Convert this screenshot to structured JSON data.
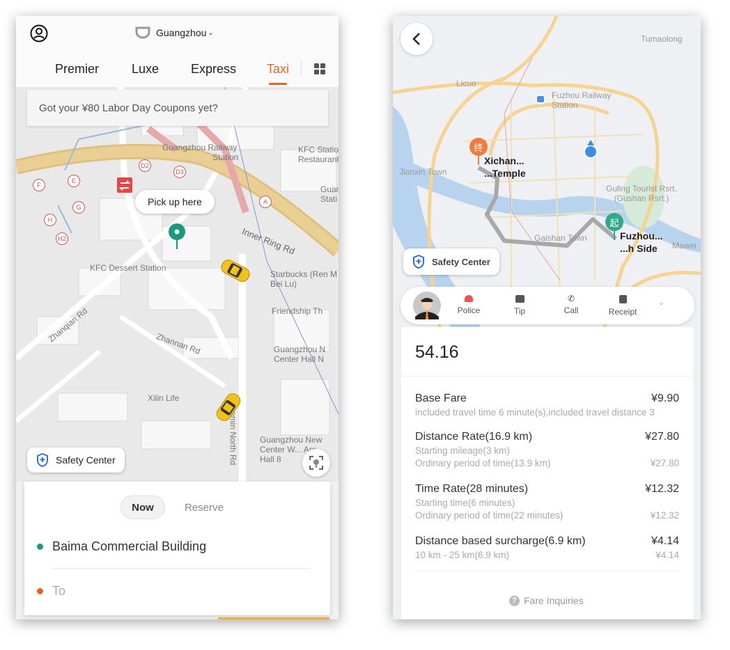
{
  "left": {
    "header": {
      "city": "Guangzhou",
      "tabs": [
        {
          "label": "Premier"
        },
        {
          "label": "Luxe"
        },
        {
          "label": "Express"
        },
        {
          "label": "Taxi",
          "active": true
        }
      ]
    },
    "banner": "Got your ¥80 Labor Day Coupons yet?",
    "map": {
      "pickup_label": "Pick up here",
      "labels": [
        "Guangzhou Railway",
        "Station",
        "KFC Statio",
        "Restaurant",
        "Guar",
        "Stati",
        "KFC Dessert Station",
        "Inner Ring Rd",
        "Zhanqian Rd",
        "Zhannan Rd",
        "Starbucks (Ren M",
        "Bei Lu)",
        "Friendship Th",
        "Guangzhou N",
        "Center Hall N",
        "Xilin Life",
        "Guangzhou New",
        "Center W... Are",
        "Hall 8",
        "Renmin North Rd"
      ],
      "exits": [
        "D2",
        "D3",
        "E",
        "F",
        "G",
        "H",
        "H2",
        "A"
      ],
      "safety_center": "Safety Center"
    },
    "panel": {
      "now": "Now",
      "reserve": "Reserve",
      "from": "Baima Commercial Building",
      "to_placeholder": "To"
    },
    "colors": {
      "accent": "#e8641e",
      "pickup": "#1a9a7c"
    }
  },
  "right": {
    "map": {
      "labels": [
        "Tumaolong",
        "Licuo",
        "Fuzhou Railway",
        "Station",
        "Jianxin Town",
        "Guling Tourist Rsrt.",
        "(Gushan Rsrt.)",
        "Gaishan Town",
        "Mawei"
      ],
      "end_marker": "终",
      "start_marker": "起",
      "end_name": [
        "Xichan...",
        "...Temple"
      ],
      "start_name": [
        "Fuzhou...",
        "...h Side"
      ],
      "safety_center": "Safety Center"
    },
    "actions": [
      {
        "label": "Police",
        "icon": "police-light-icon"
      },
      {
        "label": "Tip",
        "icon": "tip-icon"
      },
      {
        "label": "Call",
        "icon": "phone-icon"
      },
      {
        "label": "Receipt",
        "icon": "receipt-icon"
      }
    ],
    "fare": {
      "total": "54.16",
      "items": [
        {
          "name": "Base Fare",
          "amount": "¥9.90",
          "details": [
            {
              "text": "included travel time 6 minute(s),included travel distance 3",
              "amount": ""
            }
          ]
        },
        {
          "name": "Distance Rate(16.9 km)",
          "amount": "¥27.80",
          "details": [
            {
              "text": "Starting mileage(3 km)",
              "amount": ""
            },
            {
              "text": "Ordinary period of time(13.9 km)",
              "amount": "¥27.80"
            }
          ]
        },
        {
          "name": "Time Rate(28 minutes)",
          "amount": "¥12.32",
          "details": [
            {
              "text": "Starting time(6 minutes)",
              "amount": ""
            },
            {
              "text": "Ordinary period of time(22 minutes)",
              "amount": "¥12.32"
            }
          ]
        },
        {
          "name": "Distance based surcharge(6.9 km)",
          "amount": "¥4.14",
          "details": [
            {
              "text": "10 km - 25 km(6.9 km)",
              "amount": "¥4.14"
            }
          ]
        }
      ],
      "inquiries": "Fare Inquiries"
    }
  }
}
